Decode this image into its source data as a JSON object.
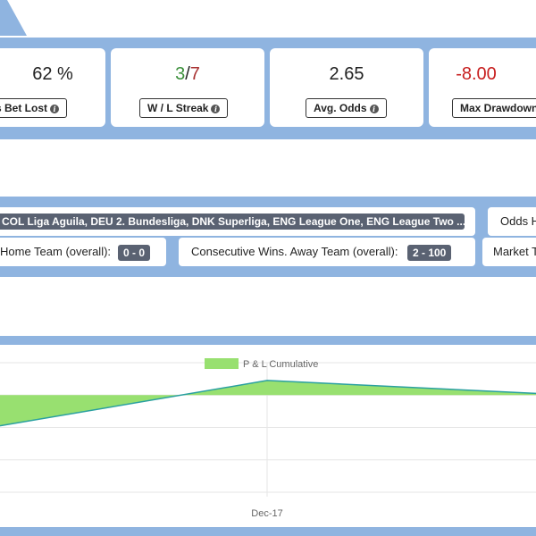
{
  "stats": [
    {
      "value": "62 %",
      "label": "s Bet Lost"
    },
    {
      "value_win": "3",
      "value_sep": "/",
      "value_loss": "7",
      "label": "W / L Streak"
    },
    {
      "value": "2.65",
      "label": "Avg. Odds"
    },
    {
      "value": "-8.00",
      "label": "Max Drawdown"
    }
  ],
  "filters": {
    "leagues": "COL Liga Aguila, DEU 2. Bundesliga, DNK Superliga, ENG League One, ENG League Two ...",
    "odds_label": "Odds H",
    "home_label": "Home Team (overall):",
    "home_value": "0 - 0",
    "away_label": "Consecutive Wins. Away Team (overall):",
    "away_value": "2 - 100",
    "market_label": "Market T"
  },
  "colors": {
    "band": "#8fb4e0",
    "area_fill": "#98e070",
    "line": "#2aa0a0"
  },
  "chart_data": {
    "type": "area",
    "legend": "P & L Cumulative",
    "x_tick_labels": [
      "Dec-17"
    ],
    "series": [
      {
        "name": "P & L Cumulative",
        "y": [
          -0.95,
          0.45,
          0.05
        ]
      }
    ],
    "ylim": [
      -3,
      1
    ],
    "grid": true,
    "legend_position": "top-center"
  }
}
